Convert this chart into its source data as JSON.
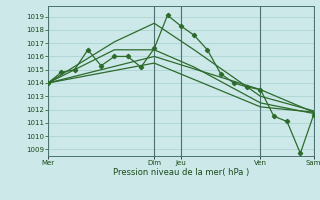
{
  "bg_color": "#cce8e8",
  "grid_color": "#a8d0d0",
  "line_color": "#2d6b2d",
  "xlabel": "Pression niveau de la mer( hPa )",
  "ylim": [
    1008.5,
    1019.8
  ],
  "yticks": [
    1009,
    1010,
    1011,
    1012,
    1013,
    1014,
    1015,
    1016,
    1017,
    1018,
    1019
  ],
  "xlim": [
    0,
    240
  ],
  "vlines": [
    0,
    96,
    120,
    192,
    240
  ],
  "xtick_positions": [
    0,
    96,
    120,
    192,
    240
  ],
  "xtick_labels": [
    "Mer",
    "Dim",
    "Jeu",
    "Ven",
    "Sam"
  ],
  "series1_x": [
    0,
    12,
    24,
    36,
    48,
    60,
    72,
    84,
    96,
    108,
    120,
    132,
    144,
    156,
    168,
    180,
    192,
    204,
    216,
    228,
    240
  ],
  "series1_y": [
    1014.0,
    1014.8,
    1015.0,
    1016.5,
    1015.3,
    1016.0,
    1016.0,
    1015.2,
    1016.6,
    1019.1,
    1018.3,
    1017.6,
    1016.5,
    1014.7,
    1014.0,
    1013.7,
    1013.5,
    1011.5,
    1011.1,
    1008.7,
    1011.6
  ],
  "series2_x": [
    0,
    60,
    96,
    132,
    192,
    240
  ],
  "series2_y": [
    1014.0,
    1016.5,
    1016.5,
    1015.2,
    1012.5,
    1011.7
  ],
  "series3_x": [
    0,
    60,
    96,
    132,
    192,
    240
  ],
  "series3_y": [
    1014.0,
    1017.1,
    1018.5,
    1016.5,
    1013.0,
    1011.9
  ],
  "series4_x": [
    0,
    96,
    192,
    240
  ],
  "series4_y": [
    1014.0,
    1015.5,
    1012.2,
    1011.8
  ],
  "series5_x": [
    0,
    96,
    192,
    240
  ],
  "series5_y": [
    1014.0,
    1016.0,
    1013.5,
    1011.8
  ]
}
